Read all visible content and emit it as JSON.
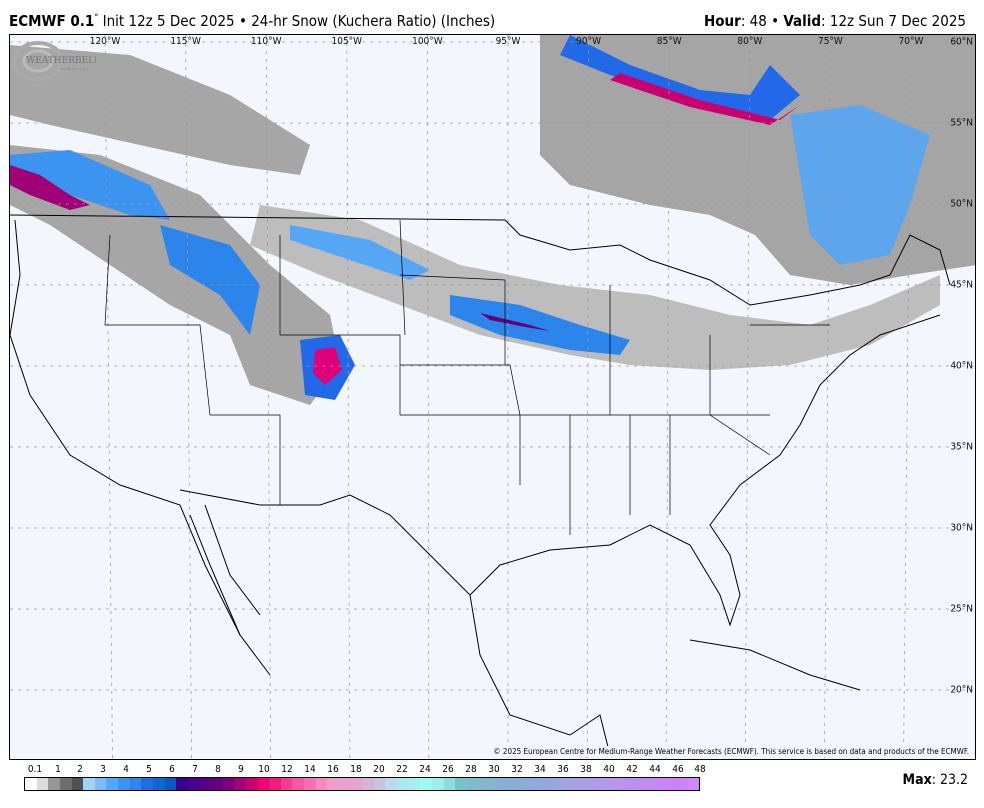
{
  "header": {
    "model": "ECMWF 0.1",
    "degree": "°",
    "init": "Init 12z 5 Dec 2025",
    "separator": "•",
    "product": "24-hr Snow (Kuchera Ratio) (Inches)",
    "hour_label": "Hour",
    "hour_value": "48",
    "valid_label": "Valid",
    "valid_value": "12z Sun 7 Dec 2025"
  },
  "map": {
    "longitude_labels": [
      "120°W",
      "115°W",
      "110°W",
      "105°W",
      "100°W",
      "95°W",
      "90°W",
      "85°W",
      "80°W",
      "75°W",
      "70°W"
    ],
    "longitudes": [
      -120,
      -115,
      -110,
      -105,
      -100,
      -95,
      -90,
      -85,
      -80,
      -75,
      -70
    ],
    "latitude_labels": [
      "60°N",
      "55°N",
      "50°N",
      "45°N",
      "40°N",
      "35°N",
      "30°N",
      "25°N",
      "20°N"
    ],
    "latitudes": [
      60,
      55,
      50,
      45,
      40,
      35,
      30,
      25,
      20
    ],
    "copyright": "© 2025 European Centre for Medium-Range Weather Forecasts (ECMWF). This service is based on data and products of the ECMWF.",
    "logo_text": "WEATHERBELL Analytics LLC",
    "colors": {
      "background": "#f3f6fd",
      "grid": "#9a9a9a",
      "borders": "#000000"
    }
  },
  "legend": {
    "labels": [
      "0.1",
      "1",
      "2",
      "3",
      "4",
      "5",
      "6",
      "7",
      "8",
      "9",
      "10",
      "12",
      "14",
      "16",
      "18",
      "20",
      "22",
      "24",
      "26",
      "28",
      "30",
      "32",
      "34",
      "36",
      "38",
      "40",
      "42",
      "44",
      "46",
      "48"
    ],
    "colors": [
      "#ffffff",
      "#dcdcdc",
      "#969696",
      "#6e6e6e",
      "#505050",
      "#9fd4fb",
      "#7bbcf8",
      "#55a6f5",
      "#3b95f0",
      "#2b85ea",
      "#2169e8",
      "#1664d0",
      "#065bbf",
      "#3c0090",
      "#4a0090",
      "#58008a",
      "#640080",
      "#7e0080",
      "#a00078",
      "#c80070",
      "#f5007a",
      "#f5187e",
      "#f53c8e",
      "#f65aa0",
      "#f86eae",
      "#f58ac0",
      "#f09ec8",
      "#eaa2cc",
      "#e4a6d0",
      "#d8b4d8",
      "#c8c4e0",
      "#bcdaea",
      "#b0e6f0",
      "#a4eef2",
      "#98fcf2",
      "#98f0ea",
      "#88e0d8",
      "#78c4c8",
      "#7cbccc",
      "#80b8cc",
      "#84b4d0",
      "#88b0d4",
      "#8cacd4",
      "#90acd8",
      "#94a8dc",
      "#98a8dc",
      "#a0a4e0",
      "#a8a0e4",
      "#aca0e4",
      "#b09ce8",
      "#b498ec",
      "#b894ec",
      "#bc90f0",
      "#c08cf0",
      "#c488f4",
      "#c884f4",
      "#cc84f8",
      "#d088f8"
    ],
    "max_label": "Max",
    "max_value": "23.2"
  }
}
